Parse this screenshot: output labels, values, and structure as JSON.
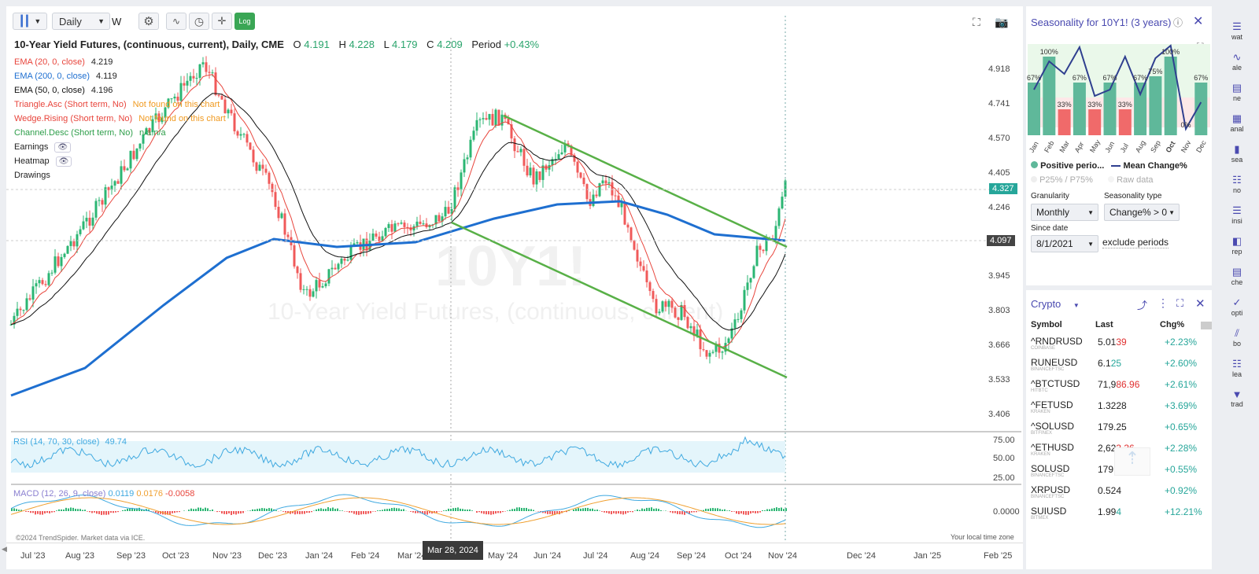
{
  "toolbar": {
    "interval": "Daily",
    "interval_short": "W",
    "log_label": "Log"
  },
  "symbol": {
    "title": "10-Year Yield Futures, (continuous, current), Daily, CME",
    "o_label": "O",
    "o": "4.191",
    "h_label": "H",
    "h": "4.228",
    "l_label": "L",
    "l": "4.179",
    "c_label": "C",
    "c": "4.209",
    "period_label": "Period",
    "period": "+0.43%"
  },
  "watermark": {
    "ticker": "10Y1!",
    "name": "10-Year Yield Futures, (continuous, current)"
  },
  "indicators": [
    {
      "label": "EMA (20, 0, close)",
      "value": "4.219",
      "color": "#e8453c"
    },
    {
      "label": "EMA (200, 0, close)",
      "value": "4.119",
      "color": "#1e6fd0"
    },
    {
      "label": "EMA (50, 0, close)",
      "value": "4.196",
      "color": "#111111"
    },
    {
      "label": "Triangle.Asc (Short term, No)",
      "value": "Not found on this chart",
      "color": "#e8453c"
    },
    {
      "label": "Wedge.Rising (Short term, No)",
      "value": "Not found on this chart",
      "color": "#e8453c"
    },
    {
      "label": "Channel.Desc (Short term, No)",
      "value": "n/a n/a",
      "color": "#2e9e4a"
    },
    {
      "label": "Earnings",
      "value": "",
      "color": "#222222"
    },
    {
      "label": "Heatmap",
      "value": "",
      "color": "#222222"
    },
    {
      "label": "Drawings",
      "value": "",
      "color": "#222222"
    }
  ],
  "price_axis": [
    "4.918",
    "4.741",
    "4.570",
    "4.405",
    "4.246",
    "3.945",
    "3.803",
    "3.666",
    "3.533",
    "3.406"
  ],
  "price_tags": {
    "current": "4.327",
    "ema": "4.097"
  },
  "time_axis": [
    "Jul '23",
    "Aug '23",
    "Sep '23",
    "Oct '23",
    "Nov '23",
    "Dec '23",
    "Jan '24",
    "Feb '24",
    "Mar '24",
    "May '24",
    "Jun '24",
    "Jul '24",
    "Aug '24",
    "Sep '24",
    "Oct '24",
    "Nov '24",
    "Dec '24",
    "Jan '25",
    "Feb '25"
  ],
  "crosshair_date": "Mar 28, 2024",
  "rsi": {
    "label": "RSI (14, 70, 30, close)",
    "value": "49.74",
    "levels": [
      "75.00",
      "50.00",
      "25.00"
    ]
  },
  "macd": {
    "label": "MACD (12, 26, 9, close)",
    "v1": "0.0119",
    "v2": "0.0176",
    "v3": "-0.0058",
    "zero": "0.0000"
  },
  "footer": {
    "left": "©2024 TrendSpider. Market data via ICE.",
    "right": "Your local time zone"
  },
  "seasonality": {
    "title": "Seasonality for 10Y1! (3 years)",
    "months": [
      "Jan",
      "Feb",
      "Mar",
      "Apr",
      "May",
      "Jun",
      "Jul",
      "Aug",
      "Sep",
      "Oct",
      "Nov",
      "Dec"
    ],
    "percent": [
      "67%",
      "100%",
      "33%",
      "67%",
      "33%",
      "67%",
      "33%",
      "67%",
      "75%",
      "100%",
      "0%",
      "67%"
    ],
    "legend_positive": "Positive perio...",
    "legend_mean": "Mean Change%",
    "legend_p25": "P25% / P75%",
    "legend_raw": "Raw data",
    "granularity_label": "Granularity",
    "granularity_value": "Monthly",
    "type_label": "Seasonality type",
    "type_value": "Change% > 0",
    "since_label": "Since date",
    "since_value": "8/1/2021",
    "exclude_label": "exclude periods",
    "colors": {
      "positive": "#5fb89a",
      "negative": "#f06a6a",
      "mean": "#2f3f8f"
    }
  },
  "watchlist": {
    "title": "Crypto",
    "headers": [
      "Symbol",
      "Last",
      "Chg%"
    ],
    "rows": [
      {
        "symbol": "^RNDRUSD",
        "exchange": "COINBASE",
        "last_a": "5.01",
        "last_b": "39",
        "dir": "down",
        "chg": "+2.23%"
      },
      {
        "symbol": "RUNEUSD",
        "exchange": "BINANCEFTSC",
        "last_a": "6.1",
        "last_b": "25",
        "dir": "up",
        "chg": "+2.60%"
      },
      {
        "symbol": "^BTCTUSD",
        "exchange": "HITBTC",
        "last_a": "71,9",
        "last_b": "86.96",
        "dir": "down",
        "chg": "+2.61%"
      },
      {
        "symbol": "^FETUSD",
        "exchange": "KRAKEN",
        "last_a": "1.3228",
        "last_b": "",
        "dir": "none",
        "chg": "+3.69%"
      },
      {
        "symbol": "^SOLUSD",
        "exchange": "BITFINEX",
        "last_a": "179.25",
        "last_b": "",
        "dir": "none",
        "chg": "+0.65%"
      },
      {
        "symbol": "^ETHUSD",
        "exchange": "KRAKEN",
        "last_a": "2,62",
        "last_b": "3.36",
        "dir": "down",
        "chg": "+2.28%"
      },
      {
        "symbol": "SOLUSD",
        "exchange": "BINANCEFTSC",
        "last_a": "179.1",
        "last_b": "4",
        "dir": "down",
        "chg": "+0.55%"
      },
      {
        "symbol": "XRPUSD",
        "exchange": "BINANCEFTSC",
        "last_a": "0.524",
        "last_b": "",
        "dir": "none",
        "chg": "+0.92%"
      },
      {
        "symbol": "SUIUSD",
        "exchange": "BITMEX",
        "last_a": "1.99",
        "last_b": "4",
        "dir": "up",
        "chg": "+12.21%"
      }
    ]
  },
  "sidebar": [
    "wat",
    "ale",
    "ne",
    "anal",
    "sea",
    "no",
    "insi",
    "rep",
    "che",
    "opti",
    "bo",
    "lea",
    "trad"
  ]
}
